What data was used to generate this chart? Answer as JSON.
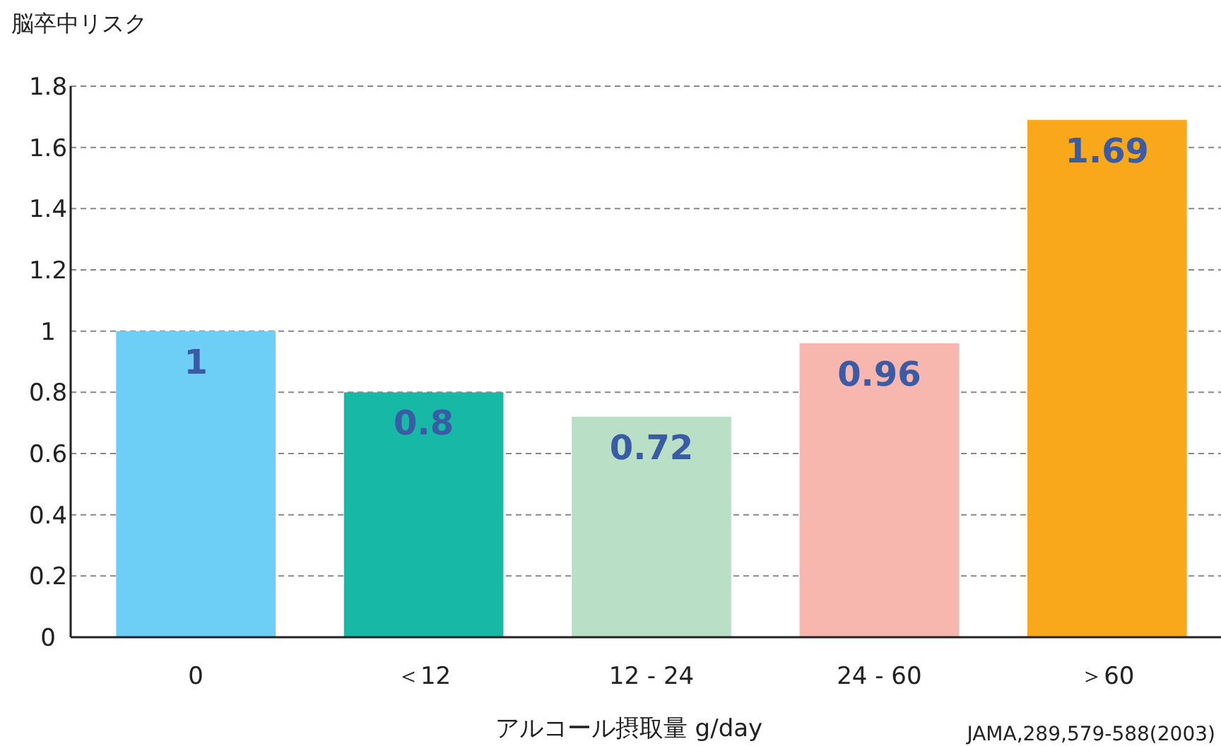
{
  "chart_data": {
    "type": "bar",
    "ylabel": "脳卒中リスク",
    "xlabel": "アルコール摂取量 g/day",
    "categories": [
      "0",
      "＜12",
      "12 - 24",
      "24 - 60",
      "＞60"
    ],
    "values": [
      1,
      0.8,
      0.72,
      0.96,
      1.69
    ],
    "colors": [
      "#6dcff6",
      "#17b9a6",
      "#b9e0c6",
      "#f7b6ae",
      "#f9a81b"
    ],
    "ylim": [
      0,
      1.8
    ],
    "yticks": [
      0,
      0.2,
      0.4,
      0.6,
      0.8,
      1,
      1.2,
      1.4,
      1.6,
      1.8
    ],
    "grid": "y",
    "data_labels": true,
    "annotations": [
      "JAMA,289,579-588(2003)"
    ]
  }
}
